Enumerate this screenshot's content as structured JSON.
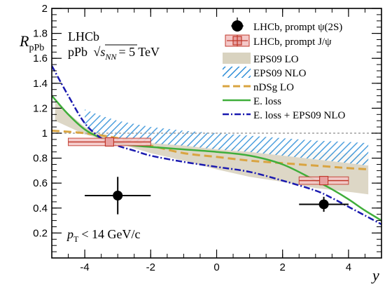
{
  "chart_data": {
    "type": "scatter",
    "title": "",
    "experiment": "LHCb",
    "system_text": "pPb",
    "energy_text": "= 5 TeV",
    "sqrt_label": "s",
    "sqrt_sub": "NN",
    "cut_label_main": "p",
    "cut_label_sub": "T",
    "cut_label_rest": "< 14 GeV/c",
    "ylabel_main": "R",
    "ylabel_sub": "pPb",
    "xlabel": "y",
    "xlim": [
      -5,
      5
    ],
    "ylim": [
      0,
      2
    ],
    "xticks": [
      "-4",
      "-2",
      "0",
      "2",
      "4"
    ],
    "xtick_values": [
      -4,
      -2,
      0,
      2,
      4
    ],
    "yticks": [
      "0.2",
      "0.4",
      "0.6",
      "0.8",
      "1",
      "1.2",
      "1.4",
      "1.6",
      "1.8",
      "2"
    ],
    "ytick_values": [
      0.2,
      0.4,
      0.6,
      0.8,
      1.0,
      1.2,
      1.4,
      1.6,
      1.8,
      2.0
    ],
    "reference_line": 1.0,
    "legend_position": "top-right",
    "legend": [
      {
        "label": "LHCb, prompt ψ(2S)",
        "style": "marker-black"
      },
      {
        "label": "LHCb, prompt J/ψ",
        "style": "marker-red-box"
      },
      {
        "label": "EPS09 LO",
        "style": "band-grey"
      },
      {
        "label": "EPS09 NLO",
        "style": "band-blue-hatched"
      },
      {
        "label": "nDSg LO",
        "style": "line-orange-dashed"
      },
      {
        "label": "E. loss",
        "style": "line-green"
      },
      {
        "label": "E. loss + EPS09 NLO",
        "style": "line-blue-dashdot"
      }
    ],
    "psi2S": {
      "name": "LHCb, prompt ψ(2S)",
      "points": [
        {
          "x": -3.0,
          "y": 0.5,
          "xerr": 1.0,
          "yerr_up": 0.15,
          "yerr_down": 0.15
        },
        {
          "x": 3.25,
          "y": 0.43,
          "xerr": 0.75,
          "yerr_up": 0.06,
          "yerr_down": 0.06
        }
      ]
    },
    "jpsi": {
      "name": "LHCb, prompt J/ψ",
      "points": [
        {
          "x": -3.25,
          "y": 0.93,
          "xerr": 1.25,
          "yerr_up": 0.03,
          "yerr_down": 0.03
        },
        {
          "x": 3.25,
          "y": 0.62,
          "xerr": 0.75,
          "yerr_up": 0.03,
          "yerr_down": 0.03
        }
      ]
    },
    "eps09_lo_band": {
      "x": [
        -4.9,
        -4.0,
        -3.0,
        -2.0,
        -1.0,
        0.0,
        1.0,
        2.0,
        3.0,
        4.0,
        4.6
      ],
      "low": [
        1.1,
        0.99,
        0.92,
        0.84,
        0.78,
        0.71,
        0.65,
        0.61,
        0.56,
        0.53,
        0.51
      ],
      "high": [
        1.25,
        1.05,
        0.97,
        0.93,
        0.91,
        0.89,
        0.88,
        0.86,
        0.85,
        0.84,
        0.83
      ]
    },
    "eps09_nlo_band": {
      "x": [
        -4.0,
        -3.5,
        -3.0,
        -2.0,
        -1.0,
        0.0,
        1.0,
        2.0,
        3.0,
        4.0,
        4.6
      ],
      "low": [
        1.05,
        0.98,
        0.94,
        0.92,
        0.9,
        0.87,
        0.85,
        0.82,
        0.79,
        0.76,
        0.74
      ],
      "high": [
        1.19,
        1.14,
        1.1,
        1.05,
        1.02,
        1.0,
        0.98,
        0.96,
        0.94,
        0.93,
        0.92
      ]
    },
    "ndsg_lo": {
      "x": [
        -5.0,
        -4.0,
        -3.0,
        -2.0,
        -1.0,
        0.0,
        1.0,
        2.0,
        3.0,
        4.0,
        4.6
      ],
      "y": [
        1.02,
        1.0,
        0.96,
        0.9,
        0.84,
        0.81,
        0.78,
        0.76,
        0.74,
        0.72,
        0.71
      ]
    },
    "eloss": {
      "x": [
        -5.0,
        -4.5,
        -4.0,
        -3.5,
        -3.0,
        -2.5,
        -2.0,
        -1.0,
        0.0,
        1.0,
        2.0,
        3.0,
        3.5,
        4.0,
        4.5,
        5.0
      ],
      "y": [
        1.3,
        1.15,
        1.03,
        0.96,
        0.92,
        0.9,
        0.89,
        0.87,
        0.85,
        0.82,
        0.75,
        0.62,
        0.55,
        0.47,
        0.38,
        0.3
      ]
    },
    "eloss_eps09": {
      "x": [
        -5.0,
        -4.5,
        -4.0,
        -3.5,
        -3.0,
        -2.5,
        -2.0,
        -1.0,
        0.0,
        1.0,
        2.0,
        3.0,
        3.5,
        4.0,
        4.5,
        5.0
      ],
      "y": [
        1.54,
        1.3,
        1.08,
        0.96,
        0.9,
        0.86,
        0.82,
        0.77,
        0.73,
        0.69,
        0.62,
        0.54,
        0.48,
        0.41,
        0.34,
        0.27
      ]
    },
    "colors": {
      "eps09_lo": "#d9d3c0",
      "eps09_nlo": "#2f8fd8",
      "ndsg": "#d9a441",
      "eloss": "#3fae3a",
      "eloss_eps09": "#1a1ab0",
      "jpsi_marker": "#e8a0a0",
      "jpsi_edge": "#c0392b",
      "reference": "#a0a0a0"
    }
  }
}
